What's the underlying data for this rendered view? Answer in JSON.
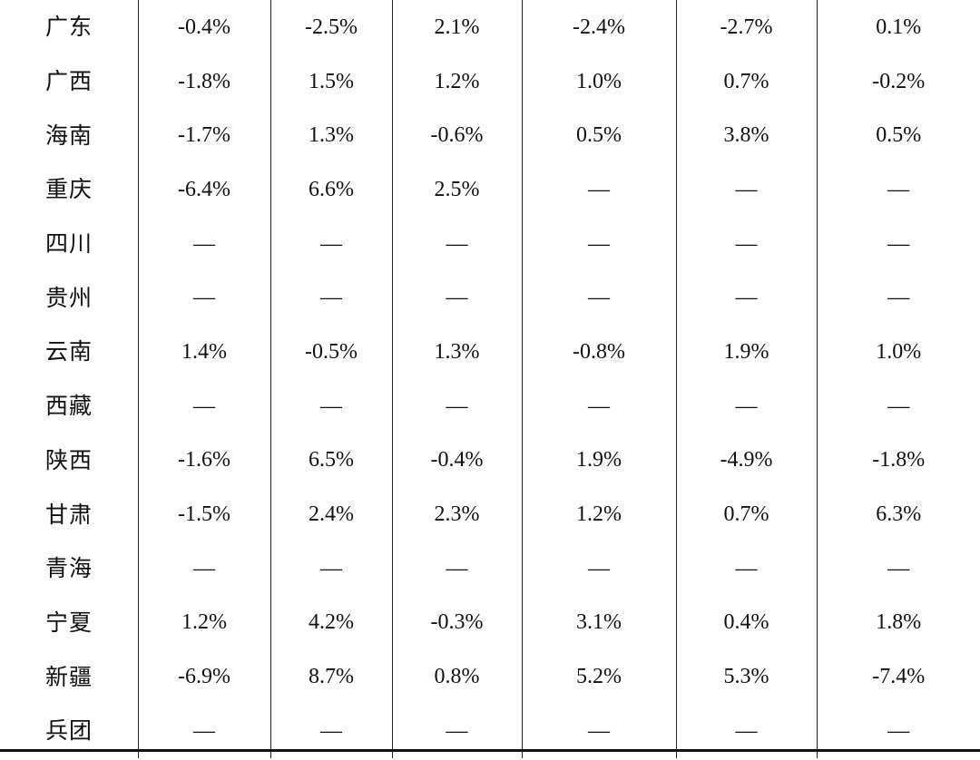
{
  "table": {
    "rows": [
      {
        "province": "广东",
        "values": [
          "-0.4%",
          "-2.5%",
          "2.1%",
          "-2.4%",
          "-2.7%",
          "0.1%"
        ]
      },
      {
        "province": "广西",
        "values": [
          "-1.8%",
          "1.5%",
          "1.2%",
          "1.0%",
          "0.7%",
          "-0.2%"
        ]
      },
      {
        "province": "海南",
        "values": [
          "-1.7%",
          "1.3%",
          "-0.6%",
          "0.5%",
          "3.8%",
          "0.5%"
        ]
      },
      {
        "province": "重庆",
        "values": [
          "-6.4%",
          "6.6%",
          "2.5%",
          "—",
          "—",
          "—"
        ]
      },
      {
        "province": "四川",
        "values": [
          "—",
          "—",
          "—",
          "—",
          "—",
          "—"
        ]
      },
      {
        "province": "贵州",
        "values": [
          "—",
          "—",
          "—",
          "—",
          "—",
          "—"
        ]
      },
      {
        "province": "云南",
        "values": [
          "1.4%",
          "-0.5%",
          "1.3%",
          "-0.8%",
          "1.9%",
          "1.0%"
        ]
      },
      {
        "province": "西藏",
        "values": [
          "—",
          "—",
          "—",
          "—",
          "—",
          "—"
        ]
      },
      {
        "province": "陕西",
        "values": [
          "-1.6%",
          "6.5%",
          "-0.4%",
          "1.9%",
          "-4.9%",
          "-1.8%"
        ]
      },
      {
        "province": "甘肃",
        "values": [
          "-1.5%",
          "2.4%",
          "2.3%",
          "1.2%",
          "0.7%",
          "6.3%"
        ]
      },
      {
        "province": "青海",
        "values": [
          "—",
          "—",
          "—",
          "—",
          "—",
          "—"
        ]
      },
      {
        "province": "宁夏",
        "values": [
          "1.2%",
          "4.2%",
          "-0.3%",
          "3.1%",
          "0.4%",
          "1.8%"
        ]
      },
      {
        "province": "新疆",
        "values": [
          "-6.9%",
          "8.7%",
          "0.8%",
          "5.2%",
          "5.3%",
          "-7.4%"
        ]
      },
      {
        "province": "兵团",
        "values": [
          "—",
          "—",
          "—",
          "—",
          "—",
          "—"
        ]
      }
    ]
  }
}
